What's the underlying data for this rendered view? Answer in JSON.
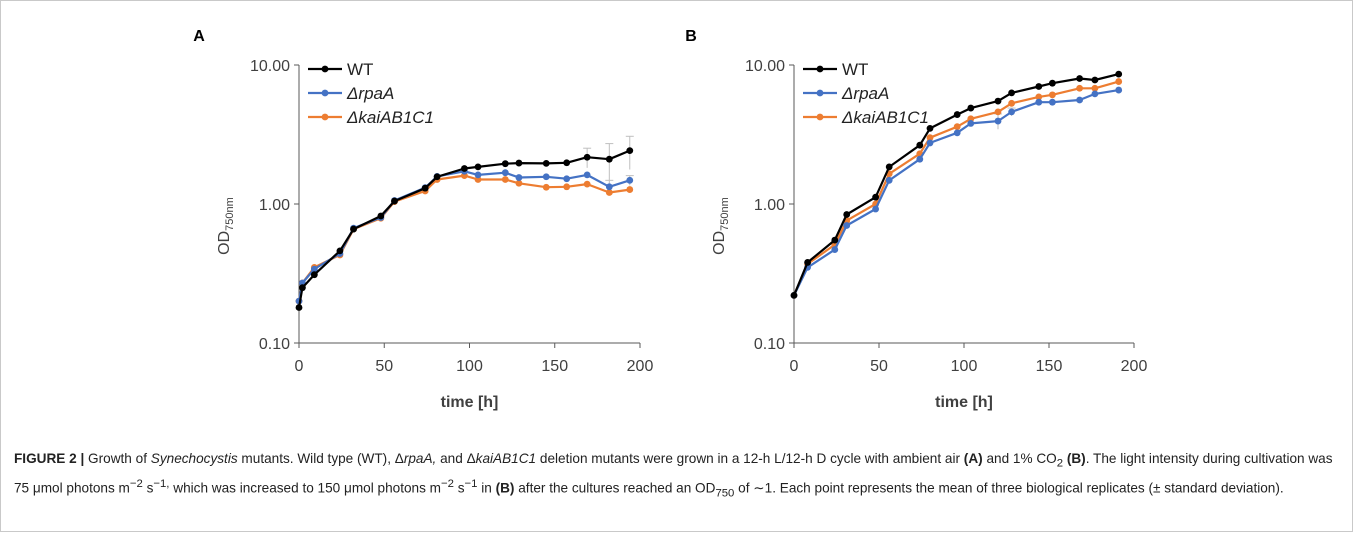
{
  "colors": {
    "wt": "#000000",
    "rpa": "#4472C4",
    "kai": "#ED7D31",
    "error_bar": "#BFBFBF",
    "axis": "#595959",
    "text": "#222222"
  },
  "chart_data": [
    {
      "panel": "A",
      "type": "line",
      "yscale": "log",
      "ylim": [
        0.1,
        10
      ],
      "xlim": [
        0,
        200
      ],
      "xlabel": "time [h]",
      "ylabel": {
        "main": "OD",
        "sub": "750nm"
      },
      "x_ticks": [
        "0",
        "50",
        "100",
        "150",
        "200"
      ],
      "y_ticks": [
        "10.00",
        "1.00",
        "0.10"
      ],
      "legend_position": "top-left",
      "series": [
        {
          "name": "WT",
          "italic": false,
          "color_key": "wt",
          "x": [
            0,
            2,
            9,
            24,
            32,
            48,
            56,
            74,
            81,
            97,
            105,
            121,
            129,
            145,
            157,
            169,
            182,
            194
          ],
          "y": [
            0.18,
            0.25,
            0.31,
            0.46,
            0.66,
            0.82,
            1.05,
            1.3,
            1.57,
            1.8,
            1.85,
            1.95,
            1.97,
            1.96,
            1.98,
            2.17,
            2.1,
            2.42
          ],
          "err": [
            0,
            0,
            0,
            0,
            0,
            0,
            0,
            0,
            0,
            0,
            0,
            0,
            0,
            0,
            0,
            0.35,
            0.62,
            0.65
          ]
        },
        {
          "name": "ΔrpaA",
          "italic": true,
          "color_key": "rpa",
          "x": [
            0,
            2,
            9,
            24,
            32,
            48,
            56,
            74,
            81,
            97,
            105,
            121,
            129,
            145,
            157,
            169,
            182,
            194
          ],
          "y": [
            0.2,
            0.27,
            0.34,
            0.44,
            0.67,
            0.8,
            1.06,
            1.31,
            1.58,
            1.72,
            1.62,
            1.68,
            1.55,
            1.57,
            1.52,
            1.62,
            1.33,
            1.48
          ],
          "err": [
            0,
            0,
            0,
            0,
            0,
            0,
            0,
            0,
            0,
            0,
            0,
            0,
            0,
            0,
            0,
            0,
            0.15,
            0.12
          ]
        },
        {
          "name": "ΔkaiAB1C1",
          "italic": true,
          "color_key": "kai",
          "x": [
            0,
            2,
            9,
            24,
            32,
            48,
            56,
            74,
            81,
            97,
            105,
            121,
            129,
            145,
            157,
            169,
            182,
            194
          ],
          "y": [
            0.2,
            0.27,
            0.35,
            0.43,
            0.66,
            0.79,
            1.04,
            1.24,
            1.5,
            1.6,
            1.5,
            1.5,
            1.41,
            1.32,
            1.33,
            1.39,
            1.21,
            1.27
          ],
          "err": [
            0,
            0,
            0,
            0,
            0,
            0,
            0,
            0,
            0,
            0,
            0,
            0,
            0,
            0,
            0,
            0,
            0,
            0
          ]
        }
      ]
    },
    {
      "panel": "B",
      "type": "line",
      "yscale": "log",
      "ylim": [
        0.1,
        10
      ],
      "xlim": [
        0,
        200
      ],
      "xlabel": "time [h]",
      "ylabel": {
        "main": "OD",
        "sub": "750nm"
      },
      "x_ticks": [
        "0",
        "50",
        "100",
        "150",
        "200"
      ],
      "y_ticks": [
        "10.00",
        "1.00",
        "0.10"
      ],
      "legend_position": "top-left",
      "series": [
        {
          "name": "WT",
          "italic": false,
          "color_key": "wt",
          "x": [
            0,
            8,
            24,
            31,
            48,
            56,
            74,
            80,
            96,
            104,
            120,
            128,
            144,
            152,
            168,
            177,
            191
          ],
          "y": [
            0.22,
            0.38,
            0.55,
            0.84,
            1.12,
            1.85,
            2.65,
            3.5,
            4.4,
            4.9,
            5.5,
            6.3,
            7.0,
            7.4,
            8.0,
            7.8,
            8.6
          ],
          "err": [
            0,
            0,
            0,
            0,
            0,
            0,
            0,
            0,
            0,
            0,
            0,
            0,
            0,
            0,
            0,
            0,
            0
          ]
        },
        {
          "name": "ΔrpaA",
          "italic": true,
          "color_key": "rpa",
          "x": [
            0,
            8,
            24,
            31,
            48,
            56,
            74,
            80,
            96,
            104,
            120,
            128,
            144,
            152,
            168,
            177,
            191
          ],
          "y": [
            0.22,
            0.35,
            0.47,
            0.7,
            0.92,
            1.48,
            2.1,
            2.75,
            3.25,
            3.8,
            3.95,
            4.6,
            5.4,
            5.4,
            5.6,
            6.2,
            6.6
          ],
          "err": [
            0,
            0,
            0,
            0,
            0,
            0,
            0,
            0,
            0,
            0,
            0.5,
            0.3,
            0,
            0,
            0,
            0,
            0
          ]
        },
        {
          "name": "ΔkaiAB1C1",
          "italic": true,
          "color_key": "kai",
          "x": [
            0,
            8,
            24,
            31,
            48,
            56,
            74,
            80,
            96,
            104,
            120,
            128,
            144,
            152,
            168,
            177,
            191
          ],
          "y": [
            0.22,
            0.37,
            0.51,
            0.76,
            1.0,
            1.65,
            2.3,
            3.0,
            3.6,
            4.1,
            4.6,
            5.3,
            5.9,
            6.1,
            6.8,
            6.8,
            7.6
          ],
          "err": [
            0,
            0,
            0,
            0,
            0,
            0,
            0,
            0,
            0,
            0,
            0,
            0,
            0,
            0,
            0,
            0,
            0
          ]
        }
      ]
    }
  ],
  "caption": {
    "figure_label": "FIGURE 2 |",
    "text_1": " Growth of ",
    "organism": "Synechocystis",
    "text_2": " mutants. Wild type (WT), Δ",
    "mutant_1": "rpaA,",
    "text_3": " and Δ",
    "mutant_2": "kaiAB1C1",
    "text_4": " deletion mutants were grown in a 12-h L/12-h D cycle with ambient air ",
    "ref_a": "(A)",
    "text_5": " and 1% CO",
    "co2_sub": "2",
    "text_6": " ",
    "ref_b": "(B)",
    "text_7": ". The light intensity during cultivation was 75 μmol photons m",
    "sup_1": "−2",
    "text_8": " s",
    "sup_2": "−1,",
    "text_9": " which was increased to 150 μmol photons m",
    "sup_3": "−2",
    "text_10": " s",
    "sup_4": "−1",
    "text_11": " in ",
    "ref_b2": "(B)",
    "text_12": " after the cultures reached an OD",
    "od_sub": "750",
    "text_13": " of ∼1. Each point represents the mean of three biological replicates (± standard deviation)."
  }
}
